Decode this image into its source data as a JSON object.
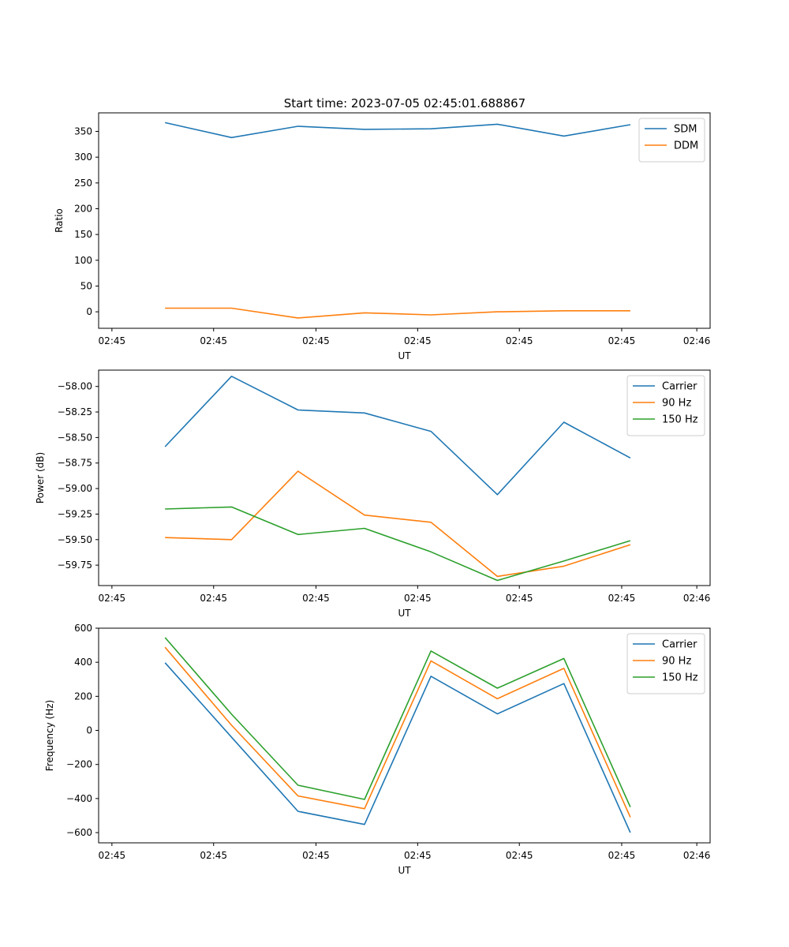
{
  "figure": {
    "title": "Start time: 2023-07-05 02:45:01.688867"
  },
  "colors": {
    "blue": "#1f77b4",
    "orange": "#ff7f0e",
    "green": "#2ca02c"
  },
  "chart_data": [
    {
      "type": "line",
      "title": "Start time: 2023-07-05 02:45:01.688867",
      "xlabel": "UT",
      "ylabel": "Ratio",
      "x": [
        1,
        2,
        3,
        4,
        5,
        6,
        7,
        8
      ],
      "xlim": [
        0,
        9.2
      ],
      "xticks": [
        0.2,
        1.73,
        3.27,
        4.8,
        6.33,
        7.87,
        9.0
      ],
      "xtick_labels": [
        "02:45",
        "02:45",
        "02:45",
        "02:45",
        "02:45",
        "02:45",
        "02:46"
      ],
      "ylim": [
        -32,
        386
      ],
      "yticks": [
        0,
        50,
        100,
        150,
        200,
        250,
        300,
        350
      ],
      "ytick_labels": [
        "0",
        "50",
        "100",
        "150",
        "200",
        "250",
        "300",
        "350"
      ],
      "legend": "upper right",
      "series": [
        {
          "name": "SDM",
          "color": "#1f77b4",
          "values": [
            367,
            338,
            360,
            354,
            355,
            364,
            341,
            363
          ]
        },
        {
          "name": "DDM",
          "color": "#ff7f0e",
          "values": [
            7,
            7,
            -12,
            -2,
            -6,
            0,
            2,
            2
          ]
        }
      ]
    },
    {
      "type": "line",
      "xlabel": "UT",
      "ylabel": "Power (dB)",
      "x": [
        1,
        2,
        3,
        4,
        5,
        6,
        7,
        8
      ],
      "xlim": [
        0,
        9.2
      ],
      "xticks": [
        0.2,
        1.73,
        3.27,
        4.8,
        6.33,
        7.87,
        9.0
      ],
      "xtick_labels": [
        "02:45",
        "02:45",
        "02:45",
        "02:45",
        "02:45",
        "02:45",
        "02:46"
      ],
      "ylim": [
        -59.95,
        -57.84
      ],
      "yticks": [
        -59.75,
        -59.5,
        -59.25,
        -59.0,
        -58.75,
        -58.5,
        -58.25,
        -58.0
      ],
      "ytick_labels": [
        "−59.75",
        "−59.50",
        "−59.25",
        "−59.00",
        "−58.75",
        "−58.50",
        "−58.25",
        "−58.00"
      ],
      "legend": "upper right",
      "series": [
        {
          "name": "Carrier",
          "color": "#1f77b4",
          "values": [
            -58.59,
            -57.9,
            -58.23,
            -58.26,
            -58.44,
            -59.06,
            -58.35,
            -58.7
          ]
        },
        {
          "name": "90 Hz",
          "color": "#ff7f0e",
          "values": [
            -59.48,
            -59.5,
            -58.83,
            -59.26,
            -59.33,
            -59.86,
            -59.76,
            -59.55
          ]
        },
        {
          "name": "150 Hz",
          "color": "#2ca02c",
          "values": [
            -59.2,
            -59.18,
            -59.45,
            -59.39,
            -59.62,
            -59.9,
            -59.71,
            -59.51
          ]
        }
      ]
    },
    {
      "type": "line",
      "xlabel": "UT",
      "ylabel": "Frequency (Hz)",
      "x": [
        1,
        2,
        3,
        4,
        5,
        6,
        7,
        8
      ],
      "xlim": [
        0,
        9.2
      ],
      "xticks": [
        0.2,
        1.73,
        3.27,
        4.8,
        6.33,
        7.87,
        9.0
      ],
      "xtick_labels": [
        "02:45",
        "02:45",
        "02:45",
        "02:45",
        "02:45",
        "02:45",
        "02:46"
      ],
      "ylim": [
        -660,
        600
      ],
      "yticks": [
        -600,
        -400,
        -200,
        0,
        200,
        400,
        600
      ],
      "ytick_labels": [
        "−600",
        "−400",
        "−200",
        "0",
        "200",
        "400",
        "600"
      ],
      "legend": "upper right",
      "series": [
        {
          "name": "Carrier",
          "color": "#1f77b4",
          "values": [
            397,
            -40,
            -475,
            -552,
            318,
            97,
            275,
            -600
          ]
        },
        {
          "name": "90 Hz",
          "color": "#ff7f0e",
          "values": [
            488,
            30,
            -385,
            -460,
            408,
            186,
            364,
            -510
          ]
        },
        {
          "name": "150 Hz",
          "color": "#2ca02c",
          "values": [
            545,
            95,
            -322,
            -405,
            466,
            248,
            422,
            -450
          ]
        }
      ]
    }
  ]
}
